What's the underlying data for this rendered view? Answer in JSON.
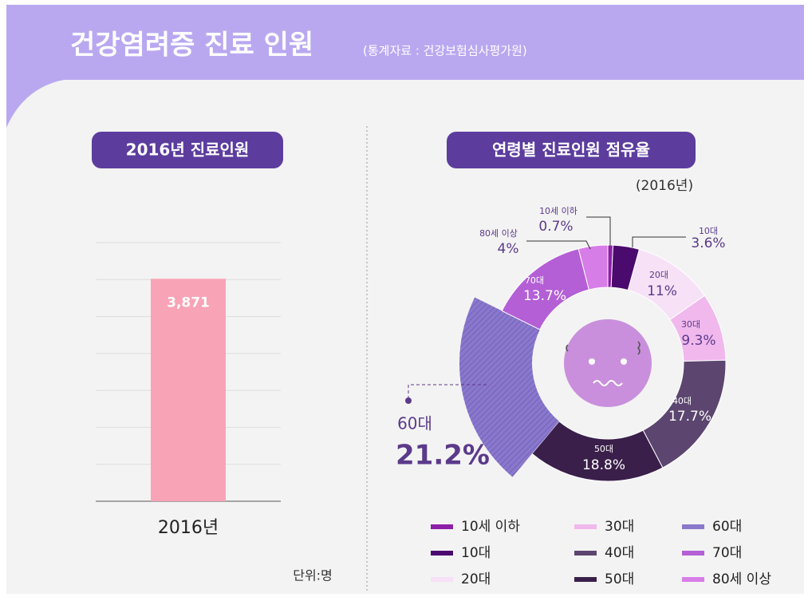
{
  "header": {
    "title": "건강염려증 진료 인원",
    "source": "(통계자료 : 건강보험심사평가원)"
  },
  "chart_data": [
    {
      "type": "bar",
      "title": "2016년 진료인원",
      "categories": [
        "2016년"
      ],
      "values": [
        3871
      ],
      "value_labels": [
        "3,871"
      ],
      "color": "#f9a3b6",
      "ylim": [
        0,
        4500
      ],
      "unit": "단위:명"
    },
    {
      "type": "pie",
      "title": "연령별 진료인원 점유율",
      "subtitle": "(2016년)",
      "categories": [
        "10세 이하",
        "10대",
        "20대",
        "30대",
        "40대",
        "50대",
        "60대",
        "70대",
        "80세 이상"
      ],
      "values": [
        0.7,
        3.6,
        11,
        9.3,
        17.7,
        18.8,
        21.2,
        13.7,
        4
      ],
      "value_labels": [
        "0.7%",
        "3.6%",
        "11%",
        "9.3%",
        "17.7%",
        "18.8%",
        "21.2%",
        "13.7%",
        "4%"
      ],
      "colors": [
        "#8e1fa8",
        "#4a0a6e",
        "#f6e1f6",
        "#f0b8ec",
        "#5c4670",
        "#3a1f4a",
        "#8a78cc",
        "#b45fd6",
        "#d77de8"
      ]
    }
  ]
}
